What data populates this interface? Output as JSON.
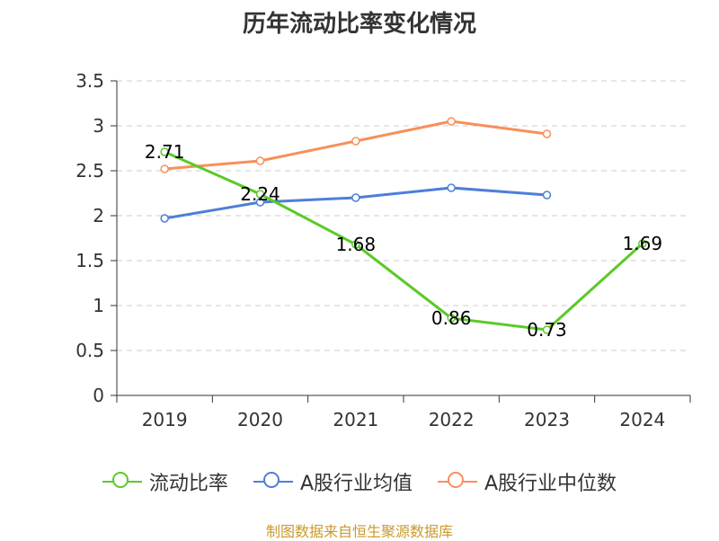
{
  "chart_data": {
    "type": "line",
    "title": "历年流动比率变化情况",
    "categories": [
      "2019",
      "2020",
      "2021",
      "2022",
      "2023",
      "2024"
    ],
    "ylim": [
      0,
      3.5
    ],
    "yticks": [
      "0",
      "0.5",
      "1",
      "1.5",
      "2",
      "2.5",
      "3",
      "3.5"
    ],
    "grid": true,
    "legend_position": "bottom",
    "series": [
      {
        "name": "流动比率",
        "color": "#5cc928",
        "values": [
          2.71,
          2.24,
          1.68,
          0.86,
          0.73,
          1.69
        ],
        "labels": [
          "2.71",
          "2.24",
          "1.68",
          "0.86",
          "0.73",
          "1.69"
        ]
      },
      {
        "name": "A股行业均值",
        "color": "#4d7fd8",
        "values": [
          1.97,
          2.15,
          2.2,
          2.31,
          2.23,
          null
        ]
      },
      {
        "name": "A股行业中位数",
        "color": "#f7905a",
        "values": [
          2.52,
          2.61,
          2.83,
          3.05,
          2.91,
          null
        ]
      }
    ],
    "source": "制图数据来自恒生聚源数据库"
  }
}
